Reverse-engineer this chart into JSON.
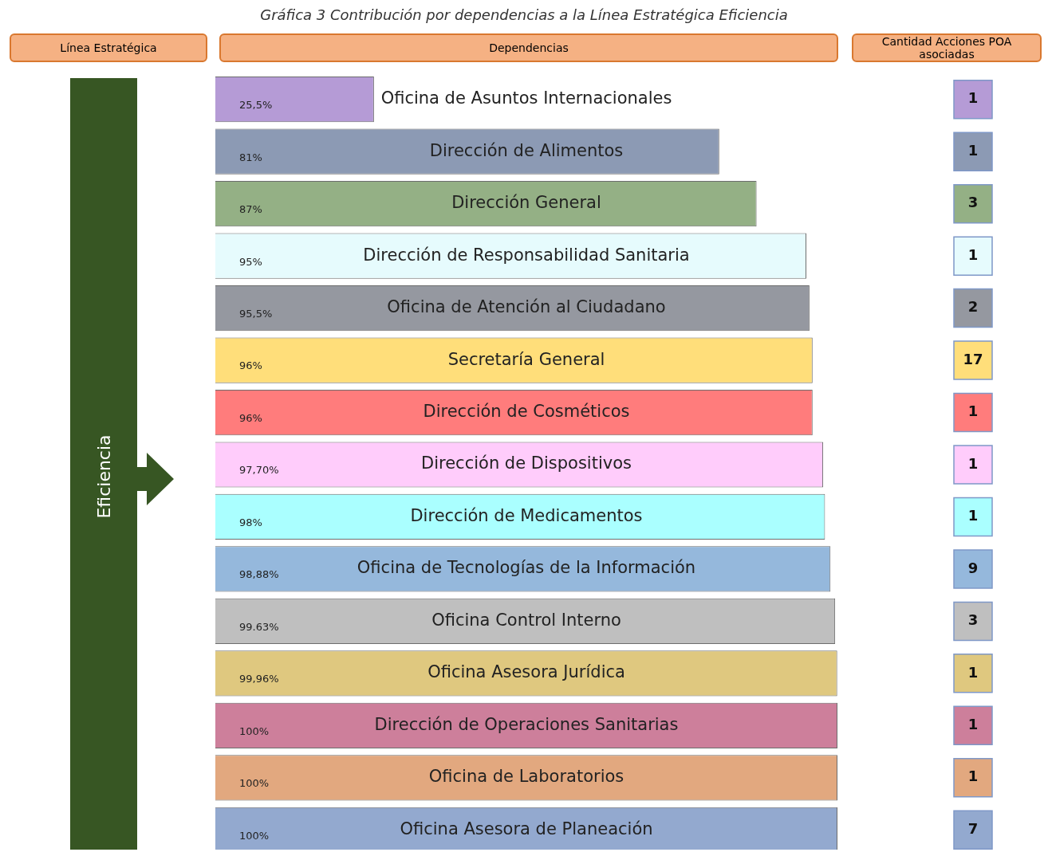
{
  "chart_data": {
    "type": "bar",
    "orientation": "horizontal",
    "title": "Gráfica 3 Contribución por dependencias a la Línea Estratégica Eficiencia",
    "categories": [
      "Oficina de Asuntos Internacionales",
      "Dirección de Alimentos",
      "Dirección General",
      "Dirección de Responsabilidad Sanitaria",
      "Oficina de Atención al Ciudadano",
      "Secretaría General",
      "Dirección de Cosméticos",
      "Dirección de Dispositivos",
      "Dirección de Medicamentos",
      "Oficina de Tecnologías de la Información",
      "Oficina Control Interno",
      "Oficina Asesora Jurídica",
      "Dirección de Operaciones Sanitarias",
      "Oficina de Laboratorios",
      "Oficina Asesora de Planeación"
    ],
    "values": [
      25.5,
      81,
      87,
      95,
      95.5,
      96,
      96,
      97.7,
      98,
      98.88,
      99.63,
      99.96,
      100,
      100,
      100
    ],
    "value_labels": [
      "25,5%",
      "81%",
      "87%",
      "95%",
      "95,5%",
      "96%",
      "96%",
      "97,70%",
      "98%",
      "98,88%",
      "99.63%",
      "99,96%",
      "100%",
      "100%",
      "100%"
    ],
    "colors": [
      "#b59bd6",
      "#8c9ab4",
      "#94b085",
      "#e6fbfd",
      "#9598a0",
      "#ffde7a",
      "#ff7c7c",
      "#ffccfb",
      "#aaffff",
      "#95b8dc",
      "#bfbfbf",
      "#dfc87f",
      "#cd7f9b",
      "#e2a87f",
      "#93a9cf"
    ],
    "xlim": [
      0,
      100
    ],
    "tick_labels": false,
    "annotations": [
      "Línea Estratégica",
      "Dependencias",
      "Cantidad Acciones POA asociadas",
      "Eficiencia",
      "1",
      "1",
      "3",
      "1",
      "2",
      "17",
      "1",
      "1",
      "1",
      "9",
      "3",
      "1",
      "1",
      "1",
      "7"
    ]
  }
}
